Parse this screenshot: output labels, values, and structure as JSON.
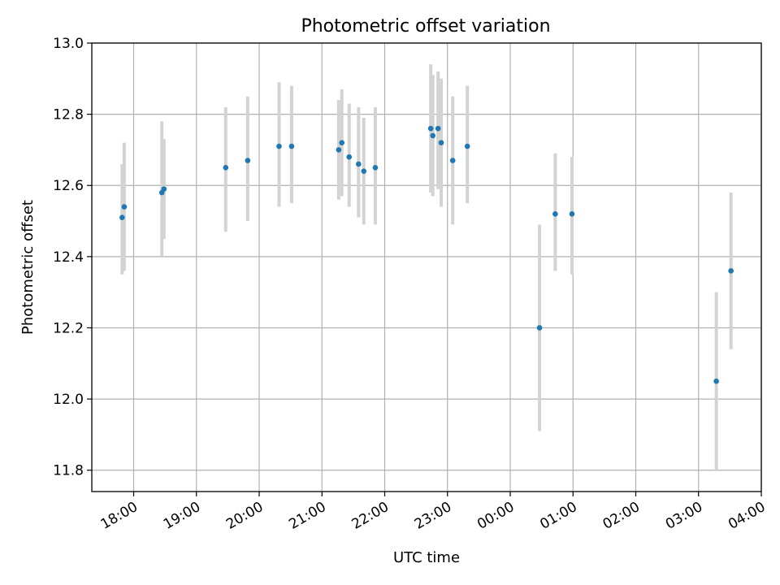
{
  "chart_data": {
    "type": "scatter",
    "title": "Photometric offset variation",
    "xlabel": "UTC time",
    "ylabel": "Photometric offset",
    "xlim": [
      "17:20",
      "04:00"
    ],
    "ylim": [
      11.74,
      13.0
    ],
    "grid": true,
    "x_ticks": [
      "18:00",
      "19:00",
      "20:00",
      "21:00",
      "22:00",
      "23:00",
      "00:00",
      "01:00",
      "02:00",
      "03:00",
      "04:00"
    ],
    "y_ticks": [
      "11.8",
      "12.0",
      "12.2",
      "12.4",
      "12.6",
      "12.8",
      "13.0"
    ],
    "error_bar_color": "#d3d3d3",
    "point_color": "#1f77b4",
    "points": [
      {
        "x": "17:49",
        "y": 12.51,
        "yerr_low": 12.35,
        "yerr_high": 12.66
      },
      {
        "x": "17:51",
        "y": 12.54,
        "yerr_low": 12.36,
        "yerr_high": 12.72
      },
      {
        "x": "18:27",
        "y": 12.58,
        "yerr_low": 12.4,
        "yerr_high": 12.78
      },
      {
        "x": "18:29",
        "y": 12.59,
        "yerr_low": 12.45,
        "yerr_high": 12.73
      },
      {
        "x": "19:28",
        "y": 12.65,
        "yerr_low": 12.47,
        "yerr_high": 12.82
      },
      {
        "x": "19:49",
        "y": 12.67,
        "yerr_low": 12.5,
        "yerr_high": 12.85
      },
      {
        "x": "20:19",
        "y": 12.71,
        "yerr_low": 12.54,
        "yerr_high": 12.89
      },
      {
        "x": "20:31",
        "y": 12.71,
        "yerr_low": 12.55,
        "yerr_high": 12.88
      },
      {
        "x": "21:16",
        "y": 12.7,
        "yerr_low": 12.56,
        "yerr_high": 12.84
      },
      {
        "x": "21:19",
        "y": 12.72,
        "yerr_low": 12.57,
        "yerr_high": 12.87
      },
      {
        "x": "21:26",
        "y": 12.68,
        "yerr_low": 12.54,
        "yerr_high": 12.83
      },
      {
        "x": "21:35",
        "y": 12.66,
        "yerr_low": 12.51,
        "yerr_high": 12.82
      },
      {
        "x": "21:40",
        "y": 12.64,
        "yerr_low": 12.49,
        "yerr_high": 12.79
      },
      {
        "x": "21:51",
        "y": 12.65,
        "yerr_low": 12.49,
        "yerr_high": 12.82
      },
      {
        "x": "22:44",
        "y": 12.76,
        "yerr_low": 12.58,
        "yerr_high": 12.94
      },
      {
        "x": "22:46",
        "y": 12.74,
        "yerr_low": 12.57,
        "yerr_high": 12.91
      },
      {
        "x": "22:51",
        "y": 12.76,
        "yerr_low": 12.59,
        "yerr_high": 12.92
      },
      {
        "x": "22:54",
        "y": 12.72,
        "yerr_low": 12.54,
        "yerr_high": 12.9
      },
      {
        "x": "23:05",
        "y": 12.67,
        "yerr_low": 12.49,
        "yerr_high": 12.85
      },
      {
        "x": "23:19",
        "y": 12.71,
        "yerr_low": 12.55,
        "yerr_high": 12.88
      },
      {
        "x": "00:28",
        "y": 12.2,
        "yerr_low": 11.91,
        "yerr_high": 12.49
      },
      {
        "x": "00:43",
        "y": 12.52,
        "yerr_low": 12.36,
        "yerr_high": 12.69
      },
      {
        "x": "00:59",
        "y": 12.52,
        "yerr_low": 12.35,
        "yerr_high": 12.68
      },
      {
        "x": "03:17",
        "y": 12.05,
        "yerr_low": 11.8,
        "yerr_high": 12.3
      },
      {
        "x": "03:31",
        "y": 12.36,
        "yerr_low": 12.14,
        "yerr_high": 12.58
      }
    ]
  }
}
